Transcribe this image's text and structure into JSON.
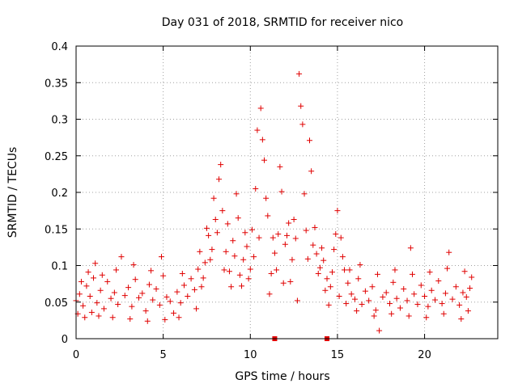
{
  "chart_data": {
    "type": "scatter",
    "title": "Day 031 of 2018, SRMTID for receiver nico",
    "xlabel": "GPS time / hours",
    "ylabel": "SRMTID / TECUs",
    "xlim": [
      0,
      24.2
    ],
    "ylim": [
      0,
      0.4
    ],
    "x_ticks": [
      0,
      5,
      10,
      15,
      20
    ],
    "x_tick_labels": [
      "0",
      "5",
      "10",
      "15",
      "20"
    ],
    "y_ticks": [
      0,
      0.05,
      0.1,
      0.15,
      0.2,
      0.25,
      0.3,
      0.35,
      0.4
    ],
    "y_tick_labels": [
      "0",
      "0.05",
      "0.1",
      "0.15",
      "0.2",
      "0.25",
      "0.3",
      "0.35",
      "0.4"
    ],
    "grid": true,
    "marker": "plus",
    "color": "#e00000",
    "series": [
      {
        "name": "SRMTID",
        "points": [
          [
            0.0,
            0.052
          ],
          [
            0.2,
            0.061
          ],
          [
            0.4,
            0.045
          ],
          [
            0.6,
            0.072
          ],
          [
            0.8,
            0.058
          ],
          [
            1.0,
            0.083
          ],
          [
            1.2,
            0.049
          ],
          [
            1.4,
            0.066
          ],
          [
            1.6,
            0.041
          ],
          [
            1.8,
            0.078
          ],
          [
            2.0,
            0.055
          ],
          [
            2.2,
            0.063
          ],
          [
            2.4,
            0.047
          ],
          [
            2.6,
            0.112
          ],
          [
            2.8,
            0.059
          ],
          [
            3.0,
            0.07
          ],
          [
            3.2,
            0.044
          ],
          [
            3.4,
            0.081
          ],
          [
            3.6,
            0.056
          ],
          [
            3.8,
            0.062
          ],
          [
            4.0,
            0.038
          ],
          [
            4.2,
            0.074
          ],
          [
            4.4,
            0.053
          ],
          [
            4.6,
            0.068
          ],
          [
            4.8,
            0.046
          ],
          [
            5.0,
            0.086
          ],
          [
            5.2,
            0.057
          ],
          [
            5.4,
            0.051
          ],
          [
            5.6,
            0.035
          ],
          [
            5.8,
            0.064
          ],
          [
            6.0,
            0.049
          ],
          [
            6.2,
            0.073
          ],
          [
            6.4,
            0.058
          ],
          [
            6.6,
            0.082
          ],
          [
            6.8,
            0.067
          ],
          [
            7.0,
            0.095
          ],
          [
            7.2,
            0.071
          ],
          [
            7.4,
            0.104
          ],
          [
            7.6,
            0.141
          ],
          [
            7.8,
            0.122
          ],
          [
            8.0,
            0.163
          ],
          [
            8.2,
            0.218
          ],
          [
            8.4,
            0.175
          ],
          [
            8.6,
            0.119
          ],
          [
            8.8,
            0.092
          ],
          [
            9.0,
            0.134
          ],
          [
            9.2,
            0.198
          ],
          [
            9.4,
            0.087
          ],
          [
            9.6,
            0.108
          ],
          [
            9.8,
            0.126
          ],
          [
            10.0,
            0.095
          ],
          [
            10.2,
            0.112
          ],
          [
            10.4,
            0.285
          ],
          [
            10.6,
            0.315
          ],
          [
            10.8,
            0.244
          ],
          [
            11.0,
            0.168
          ],
          [
            11.2,
            0.089
          ],
          [
            11.4,
            0.117
          ],
          [
            11.6,
            0.143
          ],
          [
            11.8,
            0.201
          ],
          [
            12.0,
            0.129
          ],
          [
            12.2,
            0.158
          ],
          [
            12.4,
            0.108
          ],
          [
            12.6,
            0.137
          ],
          [
            12.8,
            0.362
          ],
          [
            13.0,
            0.293
          ],
          [
            13.2,
            0.148
          ],
          [
            13.4,
            0.271
          ],
          [
            13.6,
            0.128
          ],
          [
            13.8,
            0.116
          ],
          [
            14.0,
            0.097
          ],
          [
            14.2,
            0.107
          ],
          [
            14.4,
            0.082
          ],
          [
            14.6,
            0.071
          ],
          [
            14.8,
            0.122
          ],
          [
            15.0,
            0.175
          ],
          [
            15.2,
            0.138
          ],
          [
            15.4,
            0.094
          ],
          [
            15.6,
            0.076
          ],
          [
            15.8,
            0.061
          ],
          [
            16.0,
            0.054
          ],
          [
            16.2,
            0.082
          ],
          [
            16.4,
            0.047
          ],
          [
            16.6,
            0.065
          ],
          [
            16.8,
            0.052
          ],
          [
            17.0,
            0.071
          ],
          [
            17.2,
            0.039
          ],
          [
            17.4,
            0.011
          ],
          [
            17.6,
            0.057
          ],
          [
            17.8,
            0.063
          ],
          [
            18.0,
            0.048
          ],
          [
            18.2,
            0.077
          ],
          [
            18.4,
            0.055
          ],
          [
            18.6,
            0.042
          ],
          [
            18.8,
            0.068
          ],
          [
            19.0,
            0.052
          ],
          [
            19.2,
            0.124
          ],
          [
            19.4,
            0.061
          ],
          [
            19.6,
            0.047
          ],
          [
            19.8,
            0.073
          ],
          [
            20.0,
            0.058
          ],
          [
            20.2,
            0.044
          ],
          [
            20.4,
            0.066
          ],
          [
            20.6,
            0.053
          ],
          [
            20.8,
            0.079
          ],
          [
            21.0,
            0.048
          ],
          [
            21.2,
            0.062
          ],
          [
            21.4,
            0.118
          ],
          [
            21.6,
            0.054
          ],
          [
            21.8,
            0.071
          ],
          [
            22.0,
            0.046
          ],
          [
            22.2,
            0.063
          ],
          [
            22.4,
            0.057
          ],
          [
            22.6,
            0.069
          ],
          [
            0.1,
            0.034
          ],
          [
            0.3,
            0.078
          ],
          [
            0.5,
            0.029
          ],
          [
            0.7,
            0.091
          ],
          [
            0.9,
            0.036
          ],
          [
            1.1,
            0.103
          ],
          [
            1.3,
            0.031
          ],
          [
            1.5,
            0.087
          ],
          [
            2.1,
            0.029
          ],
          [
            2.3,
            0.094
          ],
          [
            3.1,
            0.027
          ],
          [
            3.3,
            0.101
          ],
          [
            4.1,
            0.024
          ],
          [
            4.3,
            0.093
          ],
          [
            4.9,
            0.112
          ],
          [
            5.1,
            0.026
          ],
          [
            5.9,
            0.029
          ],
          [
            6.1,
            0.089
          ],
          [
            6.9,
            0.041
          ],
          [
            7.1,
            0.119
          ],
          [
            7.3,
            0.083
          ],
          [
            7.5,
            0.151
          ],
          [
            7.7,
            0.108
          ],
          [
            7.9,
            0.192
          ],
          [
            8.1,
            0.145
          ],
          [
            8.3,
            0.238
          ],
          [
            8.5,
            0.094
          ],
          [
            8.7,
            0.157
          ],
          [
            8.9,
            0.071
          ],
          [
            9.1,
            0.113
          ],
          [
            9.3,
            0.165
          ],
          [
            9.5,
            0.072
          ],
          [
            9.7,
            0.145
          ],
          [
            9.9,
            0.082
          ],
          [
            10.1,
            0.149
          ],
          [
            10.3,
            0.205
          ],
          [
            10.5,
            0.138
          ],
          [
            10.7,
            0.272
          ],
          [
            10.9,
            0.192
          ],
          [
            11.1,
            0.061
          ],
          [
            11.3,
            0.138
          ],
          [
            11.5,
            0.094
          ],
          [
            11.7,
            0.235
          ],
          [
            11.9,
            0.076
          ],
          [
            12.1,
            0.141
          ],
          [
            12.3,
            0.078
          ],
          [
            12.5,
            0.163
          ],
          [
            12.7,
            0.052
          ],
          [
            12.9,
            0.318
          ],
          [
            13.1,
            0.198
          ],
          [
            13.3,
            0.109
          ],
          [
            13.5,
            0.229
          ],
          [
            13.7,
            0.152
          ],
          [
            13.9,
            0.089
          ],
          [
            14.1,
            0.124
          ],
          [
            14.3,
            0.066
          ],
          [
            14.5,
            0.046
          ],
          [
            14.7,
            0.091
          ],
          [
            14.9,
            0.143
          ],
          [
            15.1,
            0.058
          ],
          [
            15.3,
            0.112
          ],
          [
            15.5,
            0.048
          ],
          [
            15.7,
            0.094
          ],
          [
            16.1,
            0.038
          ],
          [
            16.3,
            0.101
          ],
          [
            17.1,
            0.031
          ],
          [
            17.3,
            0.088
          ],
          [
            18.1,
            0.034
          ],
          [
            18.3,
            0.094
          ],
          [
            19.1,
            0.031
          ],
          [
            19.3,
            0.088
          ],
          [
            20.1,
            0.029
          ],
          [
            20.3,
            0.091
          ],
          [
            21.1,
            0.034
          ],
          [
            21.3,
            0.096
          ],
          [
            22.1,
            0.027
          ],
          [
            22.3,
            0.092
          ],
          [
            22.5,
            0.038
          ],
          [
            22.7,
            0.084
          ]
        ]
      }
    ],
    "baseline_markers_x": [
      11.4,
      14.4
    ]
  }
}
